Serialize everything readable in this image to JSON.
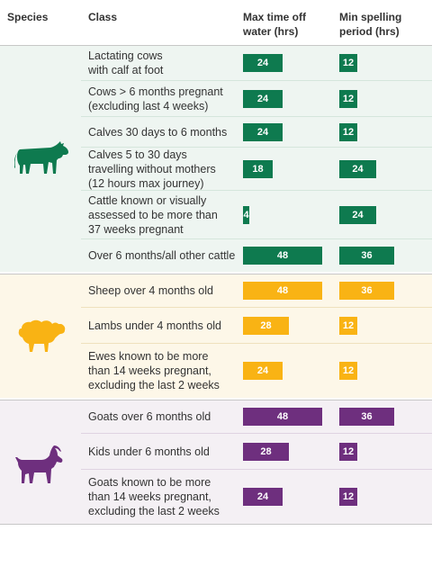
{
  "headers": {
    "species": "Species",
    "class": "Class",
    "max_time_line1": "Max time off",
    "max_time_line2": "water (hrs)",
    "min_spell_line1": "Min spelling",
    "min_spell_line2": "period (hrs)"
  },
  "colors": {
    "cattle": "#0e7a4f",
    "cattle_bg": "#eef5f1",
    "cattle_line": "#d5e6dc",
    "sheep": "#f9b314",
    "sheep_bg": "#fdf7e8",
    "sheep_line": "#efe1bd",
    "goats": "#6e2f7e",
    "goats_bg": "#f4f0f4",
    "goats_line": "#dfd3e2"
  },
  "chart_data": {
    "type": "bar",
    "scale_max_hrs": 48,
    "series": [
      {
        "name": "Max time off water (hrs)"
      },
      {
        "name": "Min spelling period (hrs)"
      }
    ],
    "groups": [
      {
        "species": "cattle",
        "icon": "cow-icon",
        "rows": [
          {
            "lines": [
              "Lactating cows",
              "with calf at foot"
            ],
            "max_hrs": 24,
            "min_hrs": 12,
            "max_label": "24",
            "min_label": "12"
          },
          {
            "lines": [
              "Cows > 6 months pregnant",
              "(excluding last 4 weeks)"
            ],
            "max_hrs": 24,
            "min_hrs": 12,
            "max_label": "24",
            "min_label": "12"
          },
          {
            "lines": [
              "Calves 30 days to 6 months"
            ],
            "max_hrs": 24,
            "min_hrs": 12,
            "max_label": "24",
            "min_label": "12"
          },
          {
            "lines": [
              "Calves 5 to 30 days",
              "travelling without mothers",
              "(12 hours max journey)"
            ],
            "max_hrs": 18,
            "min_hrs": 24,
            "max_label": "18",
            "min_label": "24"
          },
          {
            "lines": [
              "Cattle known or visually",
              "assessed to be more than",
              "37 weeks pregnant"
            ],
            "max_hrs": 4,
            "min_hrs": 24,
            "max_label": "4",
            "min_label": "24"
          },
          {
            "lines": [
              "Over 6 months/all other cattle"
            ],
            "max_hrs": 48,
            "min_hrs": 36,
            "max_label": "48",
            "min_label": "36"
          }
        ]
      },
      {
        "species": "sheep",
        "icon": "sheep-icon",
        "rows": [
          {
            "lines": [
              "Sheep over 4 months old"
            ],
            "max_hrs": 48,
            "min_hrs": 36,
            "max_label": "48",
            "min_label": "36"
          },
          {
            "lines": [
              "Lambs under 4 months old"
            ],
            "max_hrs": 28,
            "min_hrs": 12,
            "max_label": "28",
            "min_label": "12"
          },
          {
            "lines": [
              "Ewes known to be more",
              "than 14 weeks pregnant,",
              "excluding the last 2 weeks"
            ],
            "max_hrs": 24,
            "min_hrs": 12,
            "max_label": "24",
            "min_label": "12"
          }
        ]
      },
      {
        "species": "goats",
        "icon": "goat-icon",
        "rows": [
          {
            "lines": [
              "Goats over 6 months old"
            ],
            "max_hrs": 48,
            "min_hrs": 36,
            "max_label": "48",
            "min_label": "36"
          },
          {
            "lines": [
              "Kids under 6 months old"
            ],
            "max_hrs": 28,
            "min_hrs": 12,
            "max_label": "28",
            "min_label": "12"
          },
          {
            "lines": [
              "Goats known to be more",
              "than 14 weeks pregnant,",
              "excluding the last 2 weeks"
            ],
            "max_hrs": 24,
            "min_hrs": 12,
            "max_label": "24",
            "min_label": "12"
          }
        ]
      }
    ]
  }
}
